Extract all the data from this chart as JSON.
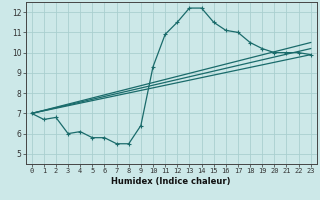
{
  "xlabel": "Humidex (Indice chaleur)",
  "bg_color": "#cce8e8",
  "line_color": "#1a6b6b",
  "grid_color": "#aacfcf",
  "xlim": [
    -0.5,
    23.5
  ],
  "ylim": [
    4.5,
    12.5
  ],
  "xticks": [
    0,
    1,
    2,
    3,
    4,
    5,
    6,
    7,
    8,
    9,
    10,
    11,
    12,
    13,
    14,
    15,
    16,
    17,
    18,
    19,
    20,
    21,
    22,
    23
  ],
  "yticks": [
    5,
    6,
    7,
    8,
    9,
    10,
    11,
    12
  ],
  "line1_x": [
    0,
    1,
    2,
    3,
    4,
    5,
    6,
    7,
    8,
    9,
    10,
    11,
    12,
    13,
    14,
    15,
    16,
    17,
    18,
    19,
    20,
    21,
    22,
    23
  ],
  "line1_y": [
    7.0,
    6.7,
    6.8,
    6.0,
    6.1,
    5.8,
    5.8,
    5.5,
    5.5,
    6.4,
    9.3,
    10.9,
    11.5,
    12.2,
    12.2,
    11.5,
    11.1,
    11.0,
    10.5,
    10.2,
    10.0,
    10.0,
    10.0,
    9.9
  ],
  "line2_x": [
    0,
    23
  ],
  "line2_y": [
    7.0,
    9.9
  ],
  "line3_x": [
    0,
    23
  ],
  "line3_y": [
    7.0,
    10.2
  ],
  "line4_x": [
    0,
    23
  ],
  "line4_y": [
    7.0,
    10.5
  ],
  "tick_fontsize": 5.0,
  "xlabel_fontsize": 6.0
}
